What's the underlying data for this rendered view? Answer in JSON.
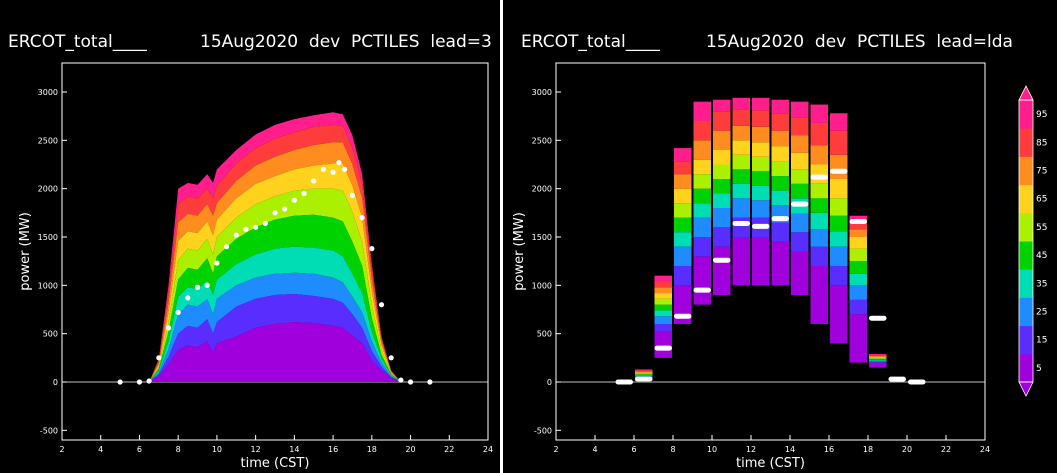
{
  "panels": [
    {
      "title_left": "ERCOT_total____",
      "title_right": "15Aug2020  dev  PCTILES  lead=3",
      "xlabel": "time (CST)",
      "ylabel": "power (MW)"
    },
    {
      "title_left": "ERCOT_total____",
      "title_right": "15Aug2020  dev  PCTILES  lead=lda",
      "xlabel": "time (CST)",
      "ylabel": "power (MW)"
    }
  ],
  "colorbar": {
    "labels": [
      "95",
      "85",
      "75",
      "65",
      "55",
      "45",
      "35",
      "25",
      "15",
      "5"
    ],
    "colors": [
      "#ff1e8c",
      "#ff3c3c",
      "#ff8c1e",
      "#ffd21e",
      "#aaf000",
      "#00d200",
      "#00dcb4",
      "#1e8cff",
      "#5a2dff",
      "#a000dc"
    ]
  },
  "chart_data": [
    {
      "type": "area",
      "title": "ERCOT_total____  15Aug2020 dev PCTILES lead=3",
      "xlabel": "time (CST)",
      "ylabel": "power (MW)",
      "xlim": [
        2,
        24
      ],
      "ylim": [
        -600,
        3300
      ],
      "xticks": [
        2,
        4,
        6,
        8,
        10,
        12,
        14,
        16,
        18,
        20,
        22,
        24
      ],
      "yticks": [
        -500,
        0,
        500,
        1000,
        1500,
        2000,
        2500,
        3000
      ],
      "grid": false,
      "percentile_x": [
        5,
        6,
        6.5,
        7,
        7.5,
        8,
        8.5,
        9,
        9.5,
        9.8,
        10,
        11,
        12,
        13,
        14,
        15,
        16,
        16.5,
        17,
        17.5,
        18,
        18.5,
        19,
        19.5,
        20,
        21
      ],
      "percentile_series": [
        {
          "name": "5",
          "values": [
            0,
            0,
            0,
            60,
            180,
            330,
            380,
            360,
            420,
            300,
            400,
            470,
            560,
            600,
            620,
            610,
            580,
            560,
            480,
            400,
            220,
            120,
            40,
            0,
            0,
            0
          ]
        },
        {
          "name": "15",
          "values": [
            0,
            0,
            0,
            80,
            260,
            500,
            580,
            560,
            650,
            500,
            620,
            780,
            860,
            900,
            910,
            890,
            860,
            820,
            700,
            560,
            320,
            160,
            50,
            0,
            0,
            0
          ]
        },
        {
          "name": "25",
          "values": [
            0,
            0,
            0,
            100,
            340,
            700,
            800,
            780,
            860,
            700,
            860,
            1000,
            1080,
            1120,
            1130,
            1120,
            1080,
            1030,
            880,
            720,
            420,
            200,
            60,
            0,
            0,
            0
          ]
        },
        {
          "name": "35",
          "values": [
            0,
            0,
            0,
            120,
            420,
            880,
            980,
            960,
            1050,
            900,
            1060,
            1220,
            1320,
            1380,
            1400,
            1390,
            1360,
            1300,
            1120,
            920,
            520,
            240,
            70,
            0,
            0,
            0
          ]
        },
        {
          "name": "45",
          "values": [
            0,
            0,
            0,
            140,
            520,
            1060,
            1180,
            1160,
            1280,
            1120,
            1300,
            1480,
            1600,
            1680,
            1720,
            1730,
            1700,
            1660,
            1450,
            1200,
            660,
            280,
            80,
            0,
            0,
            0
          ]
        },
        {
          "name": "55",
          "values": [
            0,
            0,
            0,
            160,
            620,
            1260,
            1380,
            1360,
            1480,
            1320,
            1500,
            1700,
            1840,
            1920,
            1980,
            2000,
            2000,
            1980,
            1760,
            1450,
            800,
            330,
            90,
            0,
            0,
            0
          ]
        },
        {
          "name": "65",
          "values": [
            0,
            0,
            0,
            180,
            720,
            1460,
            1560,
            1540,
            1660,
            1520,
            1680,
            1900,
            2050,
            2130,
            2200,
            2240,
            2260,
            2260,
            2030,
            1700,
            940,
            380,
            100,
            0,
            0,
            0
          ]
        },
        {
          "name": "75",
          "values": [
            0,
            0,
            0,
            200,
            820,
            1650,
            1740,
            1720,
            1840,
            1720,
            1850,
            2080,
            2240,
            2330,
            2400,
            2450,
            2480,
            2480,
            2250,
            1900,
            1060,
            420,
            110,
            0,
            0,
            0
          ]
        },
        {
          "name": "85",
          "values": [
            0,
            0,
            0,
            220,
            920,
            1840,
            1920,
            1900,
            2000,
            1900,
            2030,
            2260,
            2420,
            2520,
            2580,
            2640,
            2660,
            2650,
            2420,
            2050,
            1150,
            450,
            115,
            0,
            0,
            0
          ]
        },
        {
          "name": "95",
          "values": [
            0,
            0,
            0,
            240,
            1000,
            2000,
            2060,
            2040,
            2150,
            2060,
            2200,
            2400,
            2560,
            2660,
            2720,
            2760,
            2790,
            2770,
            2550,
            2150,
            1220,
            470,
            120,
            0,
            0,
            0
          ]
        }
      ],
      "observed_series": {
        "name": "observed",
        "x": [
          5,
          6,
          6.5,
          7,
          7.5,
          8,
          8.5,
          9,
          9.5,
          10,
          10.5,
          11,
          11.5,
          12,
          12.5,
          13,
          13.5,
          14,
          14.5,
          15,
          15.5,
          16,
          16.3,
          16.6,
          17,
          17.5,
          18,
          18.5,
          19,
          19.5,
          20,
          21
        ],
        "y": [
          0,
          0,
          10,
          250,
          560,
          720,
          870,
          980,
          1000,
          1230,
          1400,
          1520,
          1580,
          1600,
          1640,
          1750,
          1790,
          1880,
          1950,
          2080,
          2200,
          2170,
          2270,
          2200,
          1930,
          1700,
          1380,
          800,
          250,
          20,
          0,
          0
        ]
      }
    },
    {
      "type": "bar",
      "title": "ERCOT_total____  15Aug2020 dev PCTILES lead=lda",
      "xlabel": "time (CST)",
      "ylabel": "power (MW)",
      "xlim": [
        2,
        24
      ],
      "ylim": [
        -600,
        3300
      ],
      "xticks": [
        2,
        4,
        6,
        8,
        10,
        12,
        14,
        16,
        18,
        20,
        22,
        24
      ],
      "yticks": [
        -500,
        0,
        500,
        1000,
        1500,
        2000,
        2500,
        3000
      ],
      "grid": false,
      "bar_bins": [
        {
          "x0": 5,
          "x1": 6,
          "pct": [
            0,
            0,
            0,
            0,
            0,
            0,
            0,
            0,
            0,
            0,
            0
          ],
          "obs": 0
        },
        {
          "x0": 6,
          "x1": 7,
          "pct": [
            0,
            20,
            40,
            60,
            70,
            80,
            90,
            100,
            110,
            120,
            130
          ],
          "obs": 30
        },
        {
          "x0": 7,
          "x1": 8,
          "pct": [
            250,
            520,
            600,
            680,
            740,
            800,
            860,
            920,
            980,
            1040,
            1100
          ],
          "obs": 350
        },
        {
          "x0": 8,
          "x1": 9,
          "pct": [
            600,
            1000,
            1200,
            1400,
            1550,
            1700,
            1850,
            2000,
            2150,
            2280,
            2420
          ],
          "obs": 680
        },
        {
          "x0": 9,
          "x1": 10,
          "pct": [
            800,
            1300,
            1500,
            1700,
            1850,
            2000,
            2150,
            2300,
            2500,
            2700,
            2900
          ],
          "obs": 950
        },
        {
          "x0": 10,
          "x1": 11,
          "pct": [
            900,
            1400,
            1600,
            1800,
            1950,
            2100,
            2250,
            2400,
            2600,
            2800,
            2920
          ],
          "obs": 1260
        },
        {
          "x0": 11,
          "x1": 12,
          "pct": [
            1000,
            1500,
            1700,
            1900,
            2050,
            2200,
            2350,
            2500,
            2650,
            2820,
            2940
          ],
          "obs": 1640
        },
        {
          "x0": 12,
          "x1": 13,
          "pct": [
            1000,
            1500,
            1700,
            1880,
            2030,
            2180,
            2330,
            2480,
            2640,
            2810,
            2940
          ],
          "obs": 1610
        },
        {
          "x0": 13,
          "x1": 14,
          "pct": [
            1000,
            1450,
            1650,
            1830,
            1980,
            2130,
            2280,
            2440,
            2600,
            2780,
            2920
          ],
          "obs": 1690
        },
        {
          "x0": 14,
          "x1": 15,
          "pct": [
            900,
            1350,
            1550,
            1740,
            1900,
            2050,
            2200,
            2370,
            2550,
            2740,
            2900
          ],
          "obs": 1840
        },
        {
          "x0": 15,
          "x1": 16,
          "pct": [
            600,
            1200,
            1400,
            1580,
            1750,
            1900,
            2050,
            2250,
            2450,
            2680,
            2870
          ],
          "obs": 2120
        },
        {
          "x0": 16,
          "x1": 17,
          "pct": [
            400,
            1000,
            1200,
            1400,
            1560,
            1720,
            1900,
            2100,
            2350,
            2600,
            2780
          ],
          "obs": 2180
        },
        {
          "x0": 17,
          "x1": 18,
          "pct": [
            200,
            700,
            850,
            1000,
            1120,
            1250,
            1380,
            1500,
            1580,
            1660,
            1720
          ],
          "obs": 1660
        },
        {
          "x0": 18,
          "x1": 19,
          "pct": [
            150,
            200,
            210,
            220,
            230,
            240,
            250,
            260,
            270,
            280,
            290
          ],
          "obs": 660
        },
        {
          "x0": 19,
          "x1": 20,
          "pct": [
            0,
            0,
            0,
            0,
            0,
            0,
            0,
            0,
            0,
            0,
            0
          ],
          "obs": 30
        },
        {
          "x0": 20,
          "x1": 21,
          "pct": [
            0,
            0,
            0,
            0,
            0,
            0,
            0,
            0,
            0,
            0,
            0
          ],
          "obs": 0
        }
      ],
      "legend": "right"
    }
  ]
}
